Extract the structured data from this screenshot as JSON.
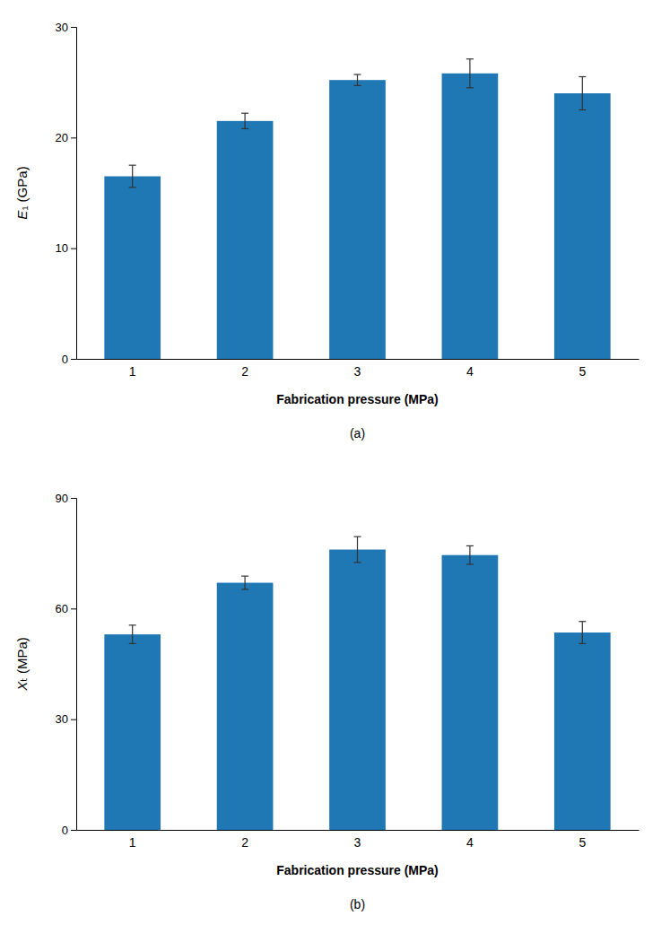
{
  "chart_data": [
    {
      "type": "bar",
      "title": "(a)",
      "ylabel": "E₁ (GPa)",
      "xlabel": "Fabrication pressure (MPa)",
      "categories": [
        "1",
        "2",
        "3",
        "4",
        "5"
      ],
      "values": [
        16.5,
        21.5,
        25.2,
        25.8,
        24.0
      ],
      "errors": [
        1.0,
        0.7,
        0.5,
        1.3,
        1.5
      ],
      "ylim": [
        0,
        30
      ],
      "yticks": [
        0,
        10,
        20,
        30
      ],
      "grid": false
    },
    {
      "type": "bar",
      "title": "(b)",
      "ylabel": "Xₜ (MPa)",
      "xlabel": "Fabrication pressure (MPa)",
      "categories": [
        "1",
        "2",
        "3",
        "4",
        "5"
      ],
      "values": [
        53.0,
        67.0,
        76.0,
        74.5,
        53.5
      ],
      "errors": [
        2.5,
        1.8,
        3.5,
        2.5,
        3.0
      ],
      "ylim": [
        0,
        90
      ],
      "yticks": [
        0,
        30,
        60,
        90
      ],
      "grid": false
    }
  ]
}
